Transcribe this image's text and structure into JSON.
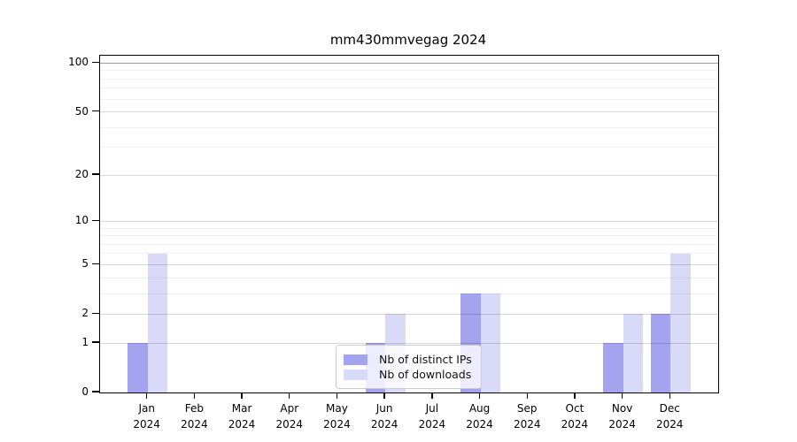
{
  "title": "mm430mmvegag 2024",
  "chart_data": {
    "type": "bar",
    "title": "mm430mmvegag 2024",
    "categories": [
      "Jan",
      "Feb",
      "Mar",
      "Apr",
      "May",
      "Jun",
      "Jul",
      "Aug",
      "Sep",
      "Oct",
      "Nov",
      "Dec"
    ],
    "year_label": "2024",
    "series": [
      {
        "name": "Nb of distinct IPs",
        "color": "#a3a3f0",
        "values": [
          1,
          0,
          0,
          0,
          0,
          1,
          0,
          3,
          0,
          0,
          1,
          2
        ]
      },
      {
        "name": "Nb of downloads",
        "color": "#d9d9f8",
        "values": [
          6,
          0,
          0,
          0,
          0,
          2,
          0,
          3,
          0,
          0,
          2,
          6
        ]
      }
    ],
    "y_axis": {
      "scale": "log1p",
      "ticks": [
        0,
        1,
        2,
        5,
        10,
        20,
        50,
        100
      ],
      "minor_ticks": [
        3,
        4,
        6,
        7,
        8,
        9,
        30,
        40,
        60,
        70,
        80,
        90
      ],
      "max": 111
    },
    "x_axis": {
      "label_line2": "2024"
    },
    "legend": {
      "position": "bottom-center",
      "entries": [
        "Nb of distinct IPs",
        "Nb of downloads"
      ]
    },
    "grid": true,
    "colors": {
      "grid_major": "rgba(0,0,0,0.16)",
      "grid_minor": "rgba(0,0,0,0.06)",
      "grid_top_major": "rgba(0,0,0,0.38)",
      "spine": "#000000"
    }
  }
}
